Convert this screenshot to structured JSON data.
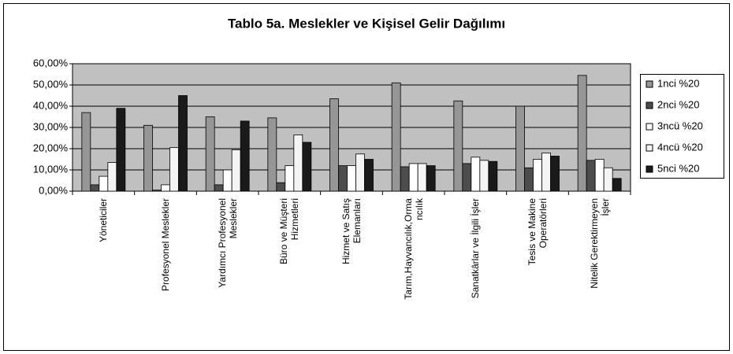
{
  "chart_data": {
    "type": "bar",
    "title": "Tablo 5a. Meslekler ve Kişisel Gelir Dağılımı",
    "categories": [
      "Yöneticiler",
      "Profesyonel Meslekler",
      "Yardımcı Profesyonel\nMeslekler",
      "Büro ve Müşteri\nHizmetleri",
      "Hizmet ve Satış\nElemanları",
      "Tarım,Hayvancılık,Orma\nncılık",
      "Sanatkârlar ve İlgili İşler",
      "Tesis ve Makine\nOperatörleri",
      "Nitelik Gerektirmeyen\nİşler"
    ],
    "series": [
      {
        "name": "1nci %20",
        "color": "#969696",
        "values": [
          37,
          31,
          35,
          34.5,
          43.5,
          51,
          42.5,
          40,
          54.5
        ]
      },
      {
        "name": "2nci %20",
        "color": "#4d4d4d",
        "values": [
          3,
          0.5,
          3,
          4,
          12,
          11.5,
          13,
          11,
          14.5
        ]
      },
      {
        "name": "3ncü %20",
        "color": "#ffffff",
        "values": [
          7,
          3,
          10,
          12,
          12,
          13,
          16,
          15,
          15
        ]
      },
      {
        "name": "4ncü %20",
        "color": "#f4f4f4",
        "values": [
          13.5,
          20.5,
          19.5,
          26.5,
          17.5,
          13,
          14.5,
          18,
          11
        ]
      },
      {
        "name": "5nci %20",
        "color": "#1a1a1a",
        "values": [
          39,
          45,
          33,
          23,
          15,
          12,
          14,
          16.5,
          6
        ]
      }
    ],
    "ylim": [
      0,
      60
    ],
    "yticks": [
      {
        "value": 0,
        "label": "0,00%"
      },
      {
        "value": 10,
        "label": "10,00%"
      },
      {
        "value": 20,
        "label": "20,00%"
      },
      {
        "value": 30,
        "label": "30,00%"
      },
      {
        "value": 40,
        "label": "40,00%"
      },
      {
        "value": 50,
        "label": "50,00%"
      },
      {
        "value": 60,
        "label": "60,00%"
      }
    ],
    "grid": true,
    "legend": "right"
  }
}
